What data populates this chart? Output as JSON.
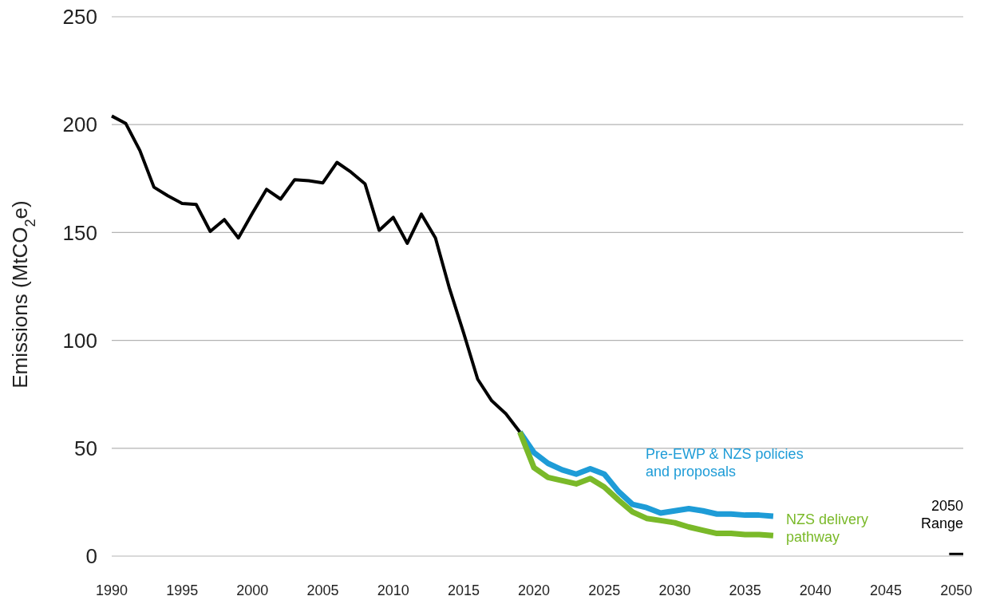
{
  "chart_data": {
    "type": "line",
    "ylabel": "Emissions (MtCO$_{2}$e)",
    "xlim": [
      1990,
      2050.5
    ],
    "xticks": [
      1990,
      1995,
      2000,
      2005,
      2010,
      2015,
      2020,
      2025,
      2030,
      2035,
      2040,
      2045,
      2050
    ],
    "ylim": [
      0,
      250
    ],
    "yticks": [
      0,
      50,
      100,
      150,
      200,
      250
    ],
    "grid": "y",
    "marker": "none",
    "line_style": "solid",
    "series": [
      {
        "color": "#000000",
        "x": [
          1990,
          1991,
          1992,
          1993,
          1994,
          1995,
          1996,
          1997,
          1998,
          1999,
          2000,
          2001,
          2002,
          2003,
          2004,
          2005,
          2006,
          2007,
          2008,
          2009,
          2010,
          2011,
          2012,
          2013,
          2014,
          2015,
          2016,
          2017,
          2018,
          2019
        ],
        "values": [
          204,
          200.5,
          188,
          171,
          167,
          163.5,
          163,
          150.5,
          156,
          147.5,
          159,
          170,
          165.5,
          174.5,
          174,
          173,
          182.5,
          178,
          172.5,
          151,
          157,
          145,
          158.5,
          147.5,
          124,
          103.5,
          82,
          72,
          66,
          57.5
        ]
      },
      {
        "name": "Pre-EWP & NZS policies and proposals",
        "color": "#1e9cd7",
        "x": [
          2019,
          2020,
          2021,
          2022,
          2023,
          2024,
          2025,
          2026,
          2027,
          2028,
          2029,
          2030,
          2031,
          2032,
          2033,
          2034,
          2035,
          2036,
          2037
        ],
        "values": [
          57.5,
          48,
          43,
          40,
          38,
          40.5,
          38,
          30,
          24,
          22.5,
          20,
          21,
          22,
          21,
          19.5,
          19.5,
          19,
          19,
          18.5
        ]
      },
      {
        "name": "NZS delivery pathway",
        "color": "#7ab929",
        "x": [
          2019,
          2020,
          2021,
          2022,
          2023,
          2024,
          2025,
          2026,
          2027,
          2028,
          2029,
          2030,
          2031,
          2032,
          2033,
          2034,
          2035,
          2036,
          2037
        ],
        "values": [
          57.5,
          41,
          36.5,
          35,
          33.5,
          36,
          32,
          26,
          20.5,
          17.5,
          16.5,
          15.5,
          13.5,
          12,
          10.5,
          10.5,
          10,
          10,
          9.5
        ]
      },
      {
        "name": "2050 Range",
        "color": "#000000",
        "x": [
          2049.5,
          2050.5
        ],
        "values": [
          1,
          1
        ]
      }
    ]
  }
}
